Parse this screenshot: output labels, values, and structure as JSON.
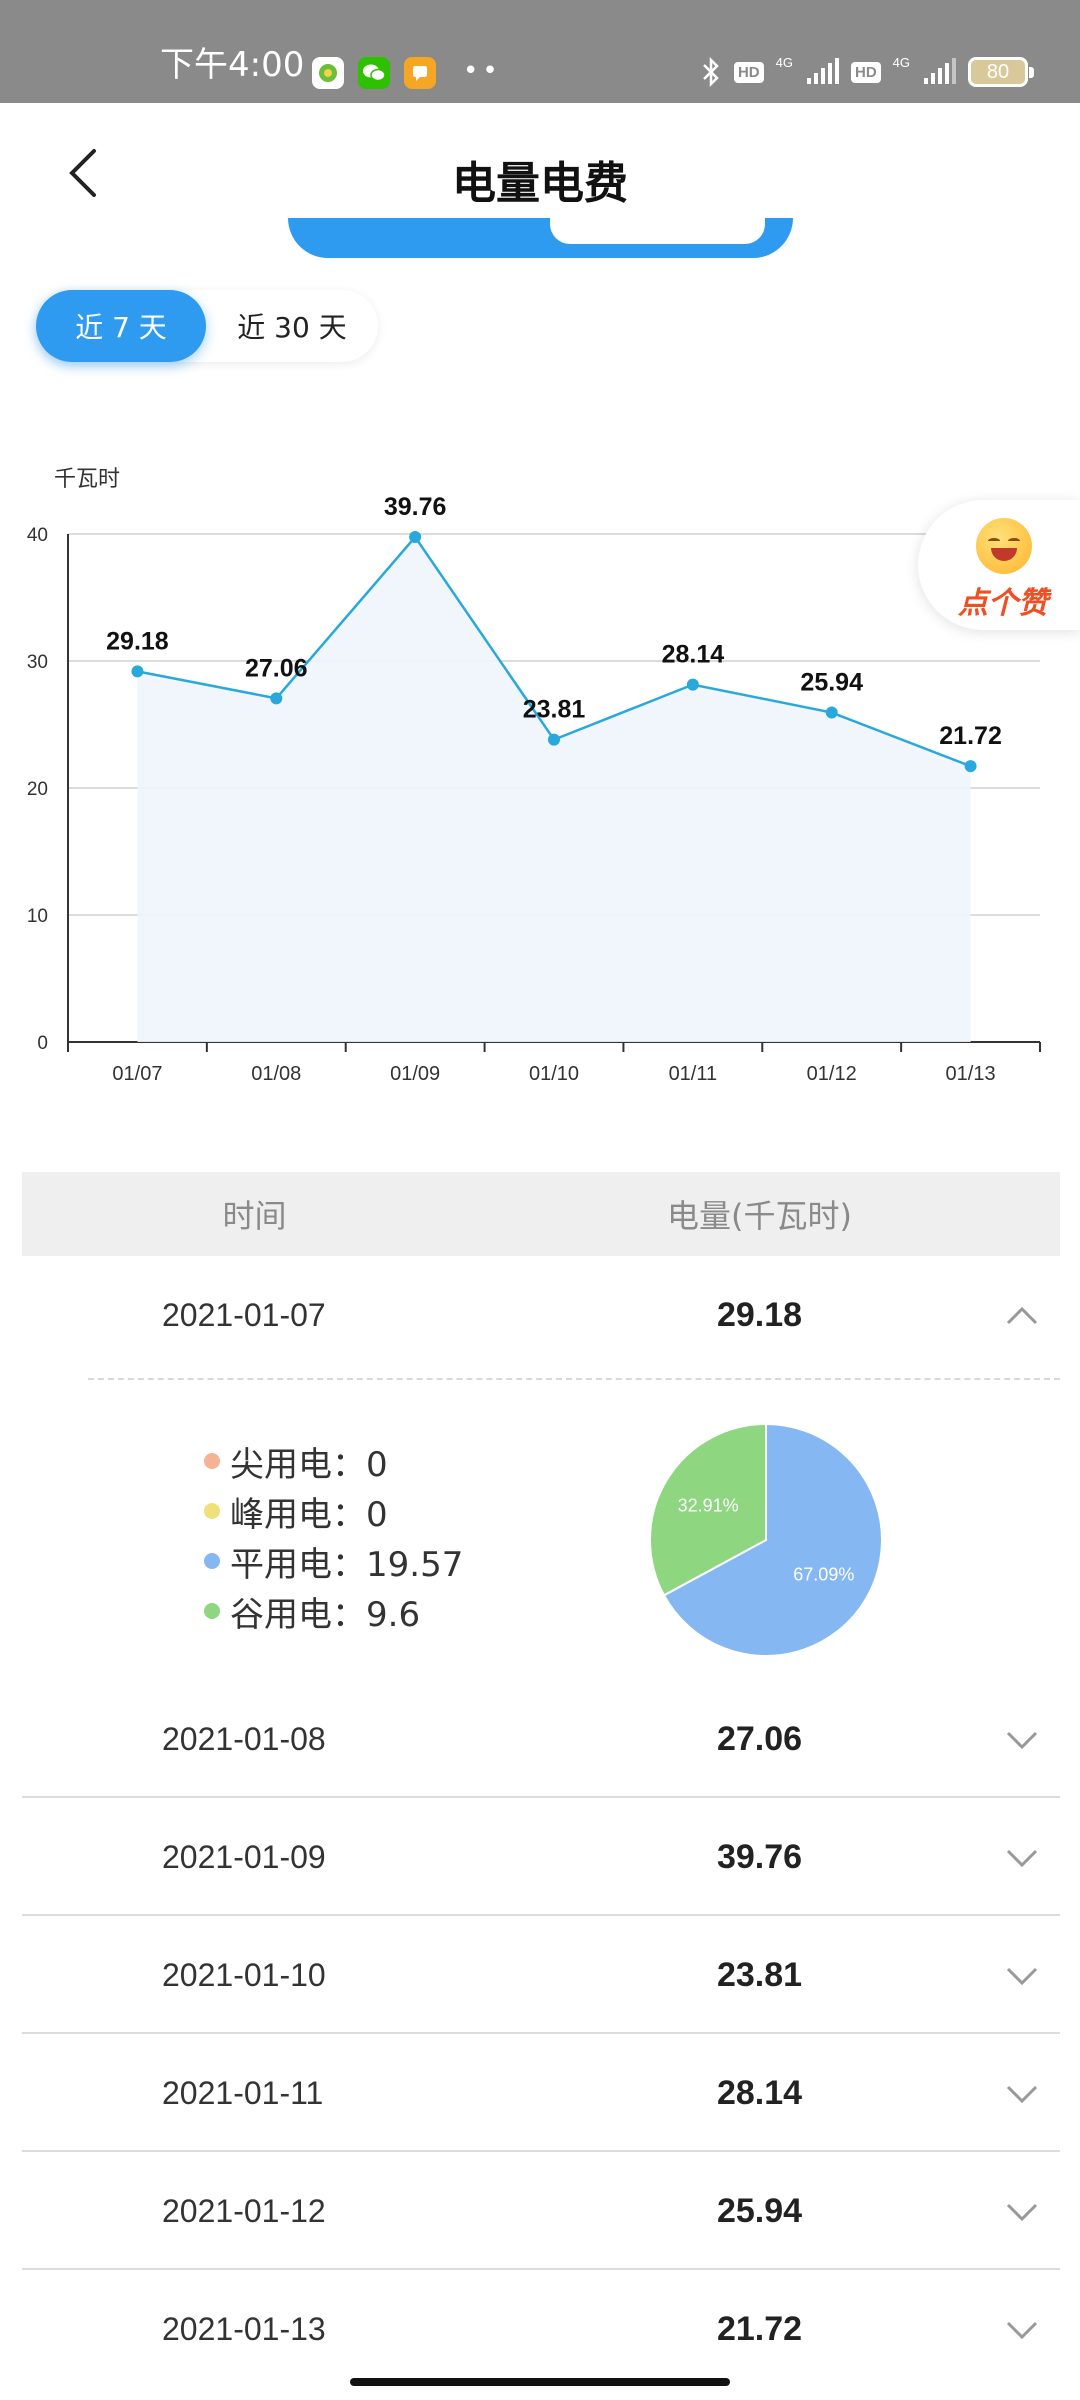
{
  "status_bar": {
    "time": "下午4:00",
    "hd": "HD",
    "net": "4G",
    "battery": "80"
  },
  "header": {
    "title": "电量电费"
  },
  "range_toggle": {
    "options": [
      "近 7 天",
      "近 30 天"
    ],
    "selected": "近 7 天"
  },
  "like_badge": {
    "label": "点个赞"
  },
  "chart_data": {
    "type": "line",
    "ylabel": "千瓦时",
    "categories": [
      "01/07",
      "01/08",
      "01/09",
      "01/10",
      "01/11",
      "01/12",
      "01/13"
    ],
    "values": [
      29.18,
      27.06,
      39.76,
      23.81,
      28.14,
      25.94,
      21.72
    ],
    "ylim": [
      0,
      40
    ],
    "yticks": [
      0,
      10,
      20,
      30,
      40
    ],
    "grid": true,
    "line_color": "#29a8dc",
    "area_fill": "#eef5fb"
  },
  "table": {
    "headers": {
      "time": "时间",
      "energy": "电量(千瓦时)"
    },
    "rows": [
      {
        "date": "2021-01-07",
        "value": "29.18",
        "expanded": true
      },
      {
        "date": "2021-01-08",
        "value": "27.06",
        "expanded": false
      },
      {
        "date": "2021-01-09",
        "value": "39.76",
        "expanded": false
      },
      {
        "date": "2021-01-10",
        "value": "23.81",
        "expanded": false
      },
      {
        "date": "2021-01-11",
        "value": "28.14",
        "expanded": false
      },
      {
        "date": "2021-01-12",
        "value": "25.94",
        "expanded": false
      },
      {
        "date": "2021-01-13",
        "value": "21.72",
        "expanded": false
      }
    ],
    "detail": {
      "items": [
        {
          "label": "尖用电：0",
          "color": "#f4b393",
          "value": 0
        },
        {
          "label": "峰用电：0",
          "color": "#f0e07a",
          "value": 0
        },
        {
          "label": "平用电：19.57",
          "color": "#85b8f2",
          "value": 19.57
        },
        {
          "label": "谷用电：9.6",
          "color": "#8ed780",
          "value": 9.6
        }
      ],
      "pie_labels": [
        "67.09%",
        "32.91%"
      ]
    }
  }
}
